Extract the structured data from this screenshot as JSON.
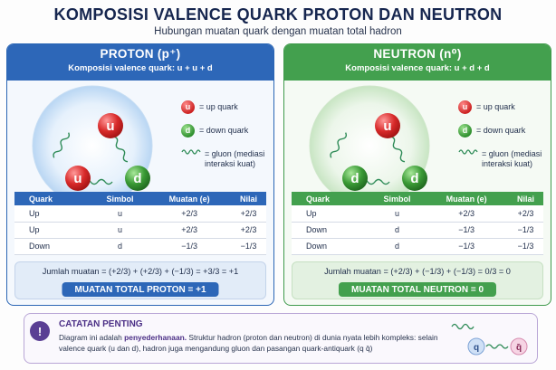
{
  "header": {
    "title": "KOMPOSISI VALENCE QUARK PROTON DAN NEUTRON",
    "subtitle": "Hubungan muatan quark dengan muatan total hadron"
  },
  "proton": {
    "title": "PROTON (p⁺)",
    "composition": "Komposisi valence quark: u + u + d",
    "quarks": [
      "u",
      "u",
      "d"
    ],
    "legend": {
      "up": {
        "symbol": "u",
        "text": "= up quark"
      },
      "down": {
        "symbol": "d",
        "text": "= down quark"
      },
      "gluon": {
        "text": "= gluon (mediasi interaksi kuat)"
      }
    },
    "table": {
      "headers": [
        "Quark",
        "Simbol",
        "Muatan (e)",
        "Nilai"
      ],
      "rows": [
        [
          "Up",
          "u",
          "+2/3",
          "+2/3"
        ],
        [
          "Up",
          "u",
          "+2/3",
          "+2/3"
        ],
        [
          "Down",
          "d",
          "−1/3",
          "−1/3"
        ]
      ]
    },
    "sum_text": "Jumlah muatan =  (+2/3) + (+2/3) + (−1/3) = +3/3 = +1",
    "total": "MUATAN TOTAL PROTON = +1"
  },
  "neutron": {
    "title": "NEUTRON (n⁰)",
    "composition": "Komposisi valence quark: u + d + d",
    "quarks": [
      "u",
      "d",
      "d"
    ],
    "legend": {
      "up": {
        "symbol": "u",
        "text": "= up quark"
      },
      "down": {
        "symbol": "d",
        "text": "= down quark"
      },
      "gluon": {
        "text": "= gluon (mediasi interaksi kuat)"
      }
    },
    "table": {
      "headers": [
        "Quark",
        "Simbol",
        "Muatan (e)",
        "Nilai"
      ],
      "rows": [
        [
          "Up",
          "u",
          "+2/3",
          "+2/3"
        ],
        [
          "Down",
          "d",
          "−1/3",
          "−1/3"
        ],
        [
          "Down",
          "d",
          "−1/3",
          "−1/3"
        ]
      ]
    },
    "sum_text": "Jumlah muatan = (+2/3) + (−1/3) + (−1/3) = 0/3 = 0",
    "total": "MUATAN TOTAL NEUTRON = 0"
  },
  "note": {
    "icon": "!",
    "title": "CATATAN PENTING",
    "lead": "Diagram ini adalah ",
    "emphasis": "penyederhanaan.",
    "body": " Struktur hadron (proton dan neutron) di dunia nyata lebih kompleks: selain valence quark (u dan d), hadron juga mengandung gluon dan pasangan quark-antiquark (q q̄)",
    "art": {
      "quark": "q",
      "antiquark": "q̄"
    }
  },
  "colors": {
    "proton": "#2d67b8",
    "neutron": "#43a04e",
    "up_quark": "#d62f2f",
    "down_quark": "#3a9a35",
    "note": "#5a3f94",
    "title": "#16264f"
  }
}
